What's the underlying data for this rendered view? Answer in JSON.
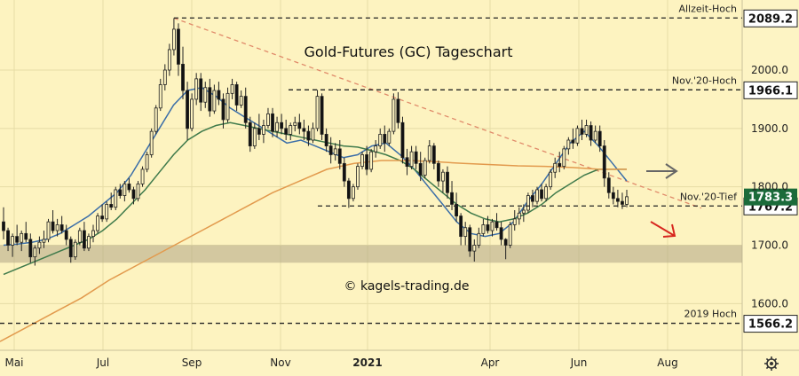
{
  "chart_data": {
    "type": "candlestick",
    "title": "Gold-Futures (GC) Tageschart",
    "credit": "© kagels-trading.de",
    "ylim": [
      1520,
      2120
    ],
    "y_ticks": [
      "1600.0",
      "1700.0",
      "1800.0",
      "1900.0",
      "2000.0"
    ],
    "x_ticks": [
      "Mai",
      "Jul",
      "Sep",
      "Nov",
      "2021",
      "Apr",
      "Jun",
      "Aug"
    ],
    "grid": true,
    "last_price": "1783.3",
    "levels": [
      {
        "label": "Allzeit-Hoch",
        "value": "2089.2"
      },
      {
        "label": "Nov.'20-Hoch",
        "value": "1966.1"
      },
      {
        "label": "Nov.'20-Tief",
        "value": "1767.2"
      },
      {
        "label": "2019 Hoch",
        "value": "1566.2"
      }
    ],
    "support_zone": [
      1670,
      1700
    ],
    "series": [
      {
        "type": "ohlc",
        "values": [
          [
            1740,
            1765,
            1710,
            1725
          ],
          [
            1725,
            1730,
            1690,
            1700
          ],
          [
            1700,
            1720,
            1680,
            1715
          ],
          [
            1715,
            1735,
            1700,
            1705
          ],
          [
            1705,
            1725,
            1690,
            1720
          ],
          [
            1720,
            1740,
            1705,
            1710
          ],
          [
            1710,
            1720,
            1670,
            1680
          ],
          [
            1680,
            1700,
            1665,
            1695
          ],
          [
            1695,
            1715,
            1685,
            1705
          ],
          [
            1705,
            1725,
            1695,
            1710
          ],
          [
            1710,
            1745,
            1705,
            1740
          ],
          [
            1740,
            1760,
            1720,
            1725
          ],
          [
            1725,
            1745,
            1715,
            1735
          ],
          [
            1735,
            1750,
            1720,
            1725
          ],
          [
            1725,
            1735,
            1700,
            1710
          ],
          [
            1710,
            1715,
            1670,
            1680
          ],
          [
            1680,
            1710,
            1675,
            1705
          ],
          [
            1705,
            1730,
            1700,
            1725
          ],
          [
            1725,
            1740,
            1690,
            1695
          ],
          [
            1695,
            1720,
            1690,
            1715
          ],
          [
            1715,
            1735,
            1705,
            1725
          ],
          [
            1725,
            1755,
            1720,
            1750
          ],
          [
            1750,
            1770,
            1740,
            1745
          ],
          [
            1745,
            1775,
            1740,
            1770
          ],
          [
            1770,
            1790,
            1760,
            1765
          ],
          [
            1765,
            1800,
            1760,
            1795
          ],
          [
            1795,
            1805,
            1780,
            1785
          ],
          [
            1785,
            1810,
            1775,
            1805
          ],
          [
            1805,
            1815,
            1790,
            1795
          ],
          [
            1795,
            1800,
            1770,
            1780
          ],
          [
            1780,
            1810,
            1775,
            1805
          ],
          [
            1805,
            1835,
            1800,
            1830
          ],
          [
            1830,
            1860,
            1825,
            1855
          ],
          [
            1855,
            1900,
            1850,
            1895
          ],
          [
            1895,
            1940,
            1890,
            1935
          ],
          [
            1935,
            1985,
            1930,
            1975
          ],
          [
            1975,
            2010,
            1965,
            2000
          ],
          [
            2000,
            2045,
            1990,
            2035
          ],
          [
            2035,
            2089,
            2025,
            2070
          ],
          [
            2070,
            2080,
            1990,
            2010
          ],
          [
            2010,
            2040,
            1950,
            1965
          ],
          [
            1965,
            1980,
            1880,
            1900
          ],
          [
            1900,
            1960,
            1895,
            1950
          ],
          [
            1950,
            1995,
            1940,
            1985
          ],
          [
            1985,
            1995,
            1930,
            1945
          ],
          [
            1945,
            1980,
            1935,
            1970
          ],
          [
            1970,
            1985,
            1920,
            1930
          ],
          [
            1930,
            1975,
            1925,
            1965
          ],
          [
            1965,
            1980,
            1940,
            1950
          ],
          [
            1950,
            1960,
            1900,
            1915
          ],
          [
            1915,
            1970,
            1910,
            1960
          ],
          [
            1960,
            1985,
            1950,
            1975
          ],
          [
            1975,
            1980,
            1930,
            1940
          ],
          [
            1940,
            1965,
            1935,
            1955
          ],
          [
            1955,
            1970,
            1900,
            1910
          ],
          [
            1910,
            1920,
            1860,
            1870
          ],
          [
            1870,
            1910,
            1865,
            1900
          ],
          [
            1900,
            1925,
            1880,
            1890
          ],
          [
            1890,
            1915,
            1875,
            1905
          ],
          [
            1905,
            1935,
            1900,
            1925
          ],
          [
            1925,
            1935,
            1885,
            1895
          ],
          [
            1895,
            1920,
            1885,
            1910
          ],
          [
            1910,
            1925,
            1890,
            1900
          ],
          [
            1900,
            1915,
            1880,
            1890
          ],
          [
            1890,
            1910,
            1880,
            1905
          ],
          [
            1905,
            1920,
            1895,
            1910
          ],
          [
            1910,
            1925,
            1890,
            1900
          ],
          [
            1900,
            1915,
            1880,
            1895
          ],
          [
            1895,
            1905,
            1870,
            1880
          ],
          [
            1880,
            1910,
            1875,
            1900
          ],
          [
            1900,
            1966,
            1895,
            1955
          ],
          [
            1955,
            1960,
            1880,
            1890
          ],
          [
            1890,
            1900,
            1860,
            1870
          ],
          [
            1870,
            1885,
            1840,
            1855
          ],
          [
            1855,
            1875,
            1845,
            1865
          ],
          [
            1865,
            1880,
            1830,
            1840
          ],
          [
            1840,
            1850,
            1800,
            1810
          ],
          [
            1810,
            1815,
            1764,
            1780
          ],
          [
            1780,
            1805,
            1775,
            1800
          ],
          [
            1800,
            1840,
            1795,
            1835
          ],
          [
            1835,
            1860,
            1830,
            1855
          ],
          [
            1855,
            1870,
            1820,
            1830
          ],
          [
            1830,
            1865,
            1825,
            1860
          ],
          [
            1860,
            1880,
            1850,
            1870
          ],
          [
            1870,
            1900,
            1865,
            1890
          ],
          [
            1890,
            1905,
            1860,
            1875
          ],
          [
            1875,
            1900,
            1870,
            1895
          ],
          [
            1895,
            1960,
            1890,
            1950
          ],
          [
            1950,
            1962,
            1900,
            1910
          ],
          [
            1910,
            1920,
            1840,
            1850
          ],
          [
            1850,
            1865,
            1820,
            1835
          ],
          [
            1835,
            1870,
            1830,
            1860
          ],
          [
            1860,
            1870,
            1830,
            1840
          ],
          [
            1840,
            1860,
            1810,
            1820
          ],
          [
            1820,
            1850,
            1815,
            1845
          ],
          [
            1845,
            1880,
            1840,
            1870
          ],
          [
            1870,
            1875,
            1830,
            1840
          ],
          [
            1840,
            1845,
            1800,
            1810
          ],
          [
            1810,
            1830,
            1790,
            1825
          ],
          [
            1825,
            1835,
            1780,
            1790
          ],
          [
            1790,
            1810,
            1760,
            1770
          ],
          [
            1770,
            1790,
            1740,
            1750
          ],
          [
            1750,
            1755,
            1700,
            1715
          ],
          [
            1715,
            1740,
            1700,
            1730
          ],
          [
            1730,
            1735,
            1680,
            1690
          ],
          [
            1690,
            1710,
            1672,
            1700
          ],
          [
            1700,
            1730,
            1695,
            1720
          ],
          [
            1720,
            1745,
            1715,
            1735
          ],
          [
            1735,
            1750,
            1720,
            1725
          ],
          [
            1725,
            1745,
            1715,
            1740
          ],
          [
            1740,
            1755,
            1725,
            1730
          ],
          [
            1730,
            1740,
            1700,
            1710
          ],
          [
            1710,
            1712,
            1676,
            1700
          ],
          [
            1700,
            1740,
            1695,
            1735
          ],
          [
            1735,
            1760,
            1725,
            1745
          ],
          [
            1745,
            1765,
            1735,
            1755
          ],
          [
            1755,
            1770,
            1740,
            1760
          ],
          [
            1760,
            1790,
            1755,
            1785
          ],
          [
            1785,
            1795,
            1765,
            1775
          ],
          [
            1775,
            1800,
            1770,
            1795
          ],
          [
            1795,
            1805,
            1775,
            1780
          ],
          [
            1780,
            1805,
            1775,
            1800
          ],
          [
            1800,
            1830,
            1795,
            1825
          ],
          [
            1825,
            1850,
            1815,
            1840
          ],
          [
            1840,
            1860,
            1825,
            1835
          ],
          [
            1835,
            1870,
            1830,
            1865
          ],
          [
            1865,
            1885,
            1855,
            1880
          ],
          [
            1880,
            1900,
            1865,
            1875
          ],
          [
            1875,
            1905,
            1870,
            1900
          ],
          [
            1900,
            1915,
            1880,
            1890
          ],
          [
            1890,
            1915,
            1885,
            1905
          ],
          [
            1905,
            1912,
            1870,
            1880
          ],
          [
            1880,
            1905,
            1875,
            1895
          ],
          [
            1895,
            1905,
            1860,
            1870
          ],
          [
            1870,
            1880,
            1800,
            1815
          ],
          [
            1815,
            1825,
            1780,
            1790
          ],
          [
            1790,
            1800,
            1770,
            1780
          ],
          [
            1780,
            1795,
            1765,
            1775
          ],
          [
            1775,
            1790,
            1762,
            1770
          ],
          [
            1770,
            1795,
            1765,
            1783
          ]
        ]
      },
      {
        "type": "moving-average",
        "name": "",
        "values": [
          1700,
          1702,
          1705,
          1710,
          1720,
          1735,
          1750,
          1770,
          1790,
          1820,
          1860,
          1900,
          1940,
          1965,
          1970,
          1955,
          1935,
          1920,
          1905,
          1890,
          1875,
          1880,
          1870,
          1860,
          1850,
          1855,
          1870,
          1875,
          1855,
          1830,
          1800,
          1770,
          1740,
          1720,
          1715,
          1720,
          1740,
          1775,
          1805,
          1840,
          1875,
          1895,
          1870,
          1840,
          1810
        ]
      },
      {
        "type": "moving-average",
        "name": "",
        "values": [
          1650,
          1660,
          1670,
          1680,
          1690,
          1700,
          1710,
          1725,
          1745,
          1770,
          1795,
          1825,
          1855,
          1880,
          1895,
          1905,
          1910,
          1905,
          1900,
          1895,
          1890,
          1885,
          1880,
          1875,
          1870,
          1868,
          1862,
          1855,
          1845,
          1830,
          1810,
          1790,
          1770,
          1755,
          1745,
          1740,
          1745,
          1755,
          1770,
          1790,
          1805,
          1820,
          1830,
          1830,
          1830
        ]
      },
      {
        "type": "moving-average",
        "name": "",
        "values": [
          1535,
          1560,
          1585,
          1610,
          1640,
          1665,
          1690,
          1715,
          1740,
          1765,
          1790,
          1810,
          1830,
          1840,
          1845,
          1845,
          1843,
          1840,
          1838,
          1836,
          1835,
          1833,
          1830,
          1830
        ]
      }
    ]
  }
}
